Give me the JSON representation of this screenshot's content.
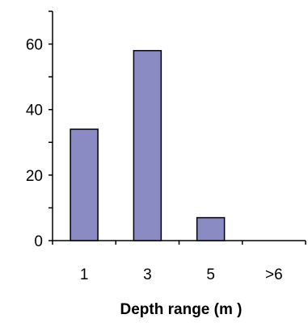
{
  "chart_data": {
    "type": "bar",
    "categories": [
      "1",
      "3",
      "5",
      ">6"
    ],
    "values": [
      34,
      58,
      7,
      0
    ],
    "xlabel": "Depth range (m )",
    "ylabel": "",
    "ylim": [
      0,
      70
    ],
    "yticks": [
      0,
      20,
      40,
      60
    ],
    "grid": false,
    "bar_color": "#8B8BC4",
    "bar_edge": "#000000"
  }
}
